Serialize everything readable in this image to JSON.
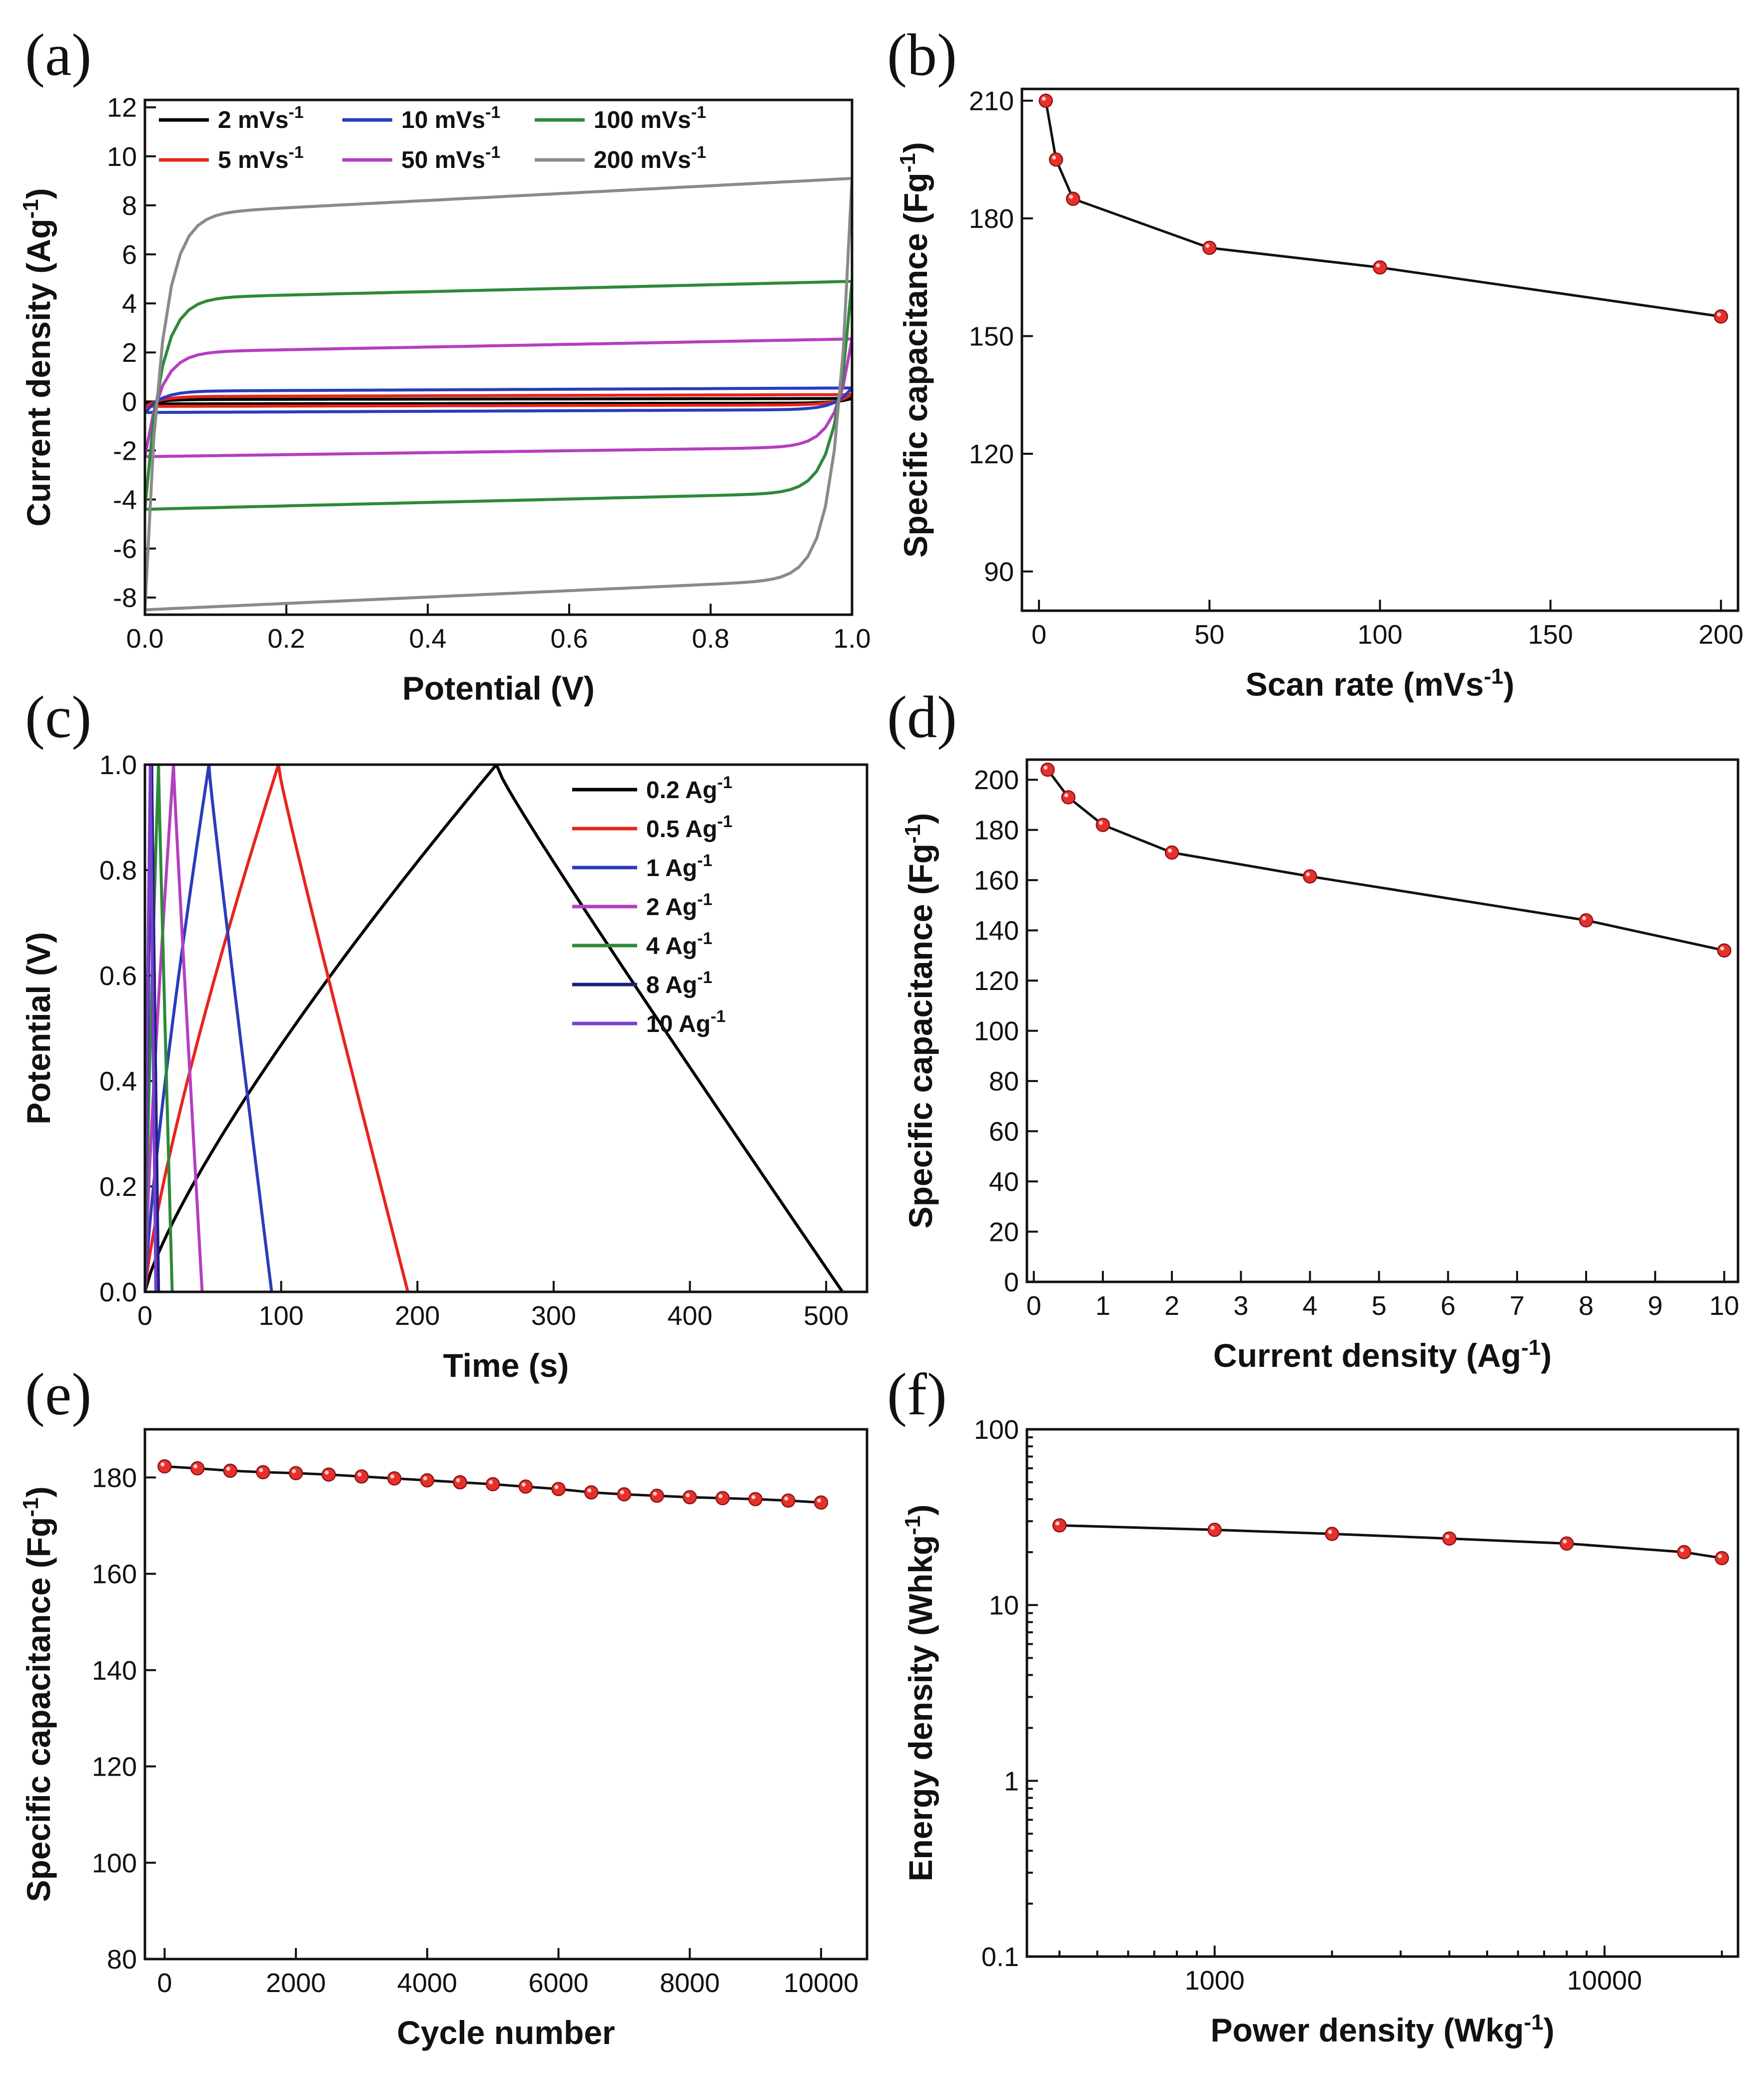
{
  "chart_data": [
    {
      "id": "a",
      "panel_label": "(a)",
      "type": "line",
      "title": "",
      "xlabel": "Potential (V)",
      "ylabel_main": "Current density (Ag",
      "ylabel_sup": "-1",
      "ylabel_end": ")",
      "xlim": [
        0,
        1
      ],
      "ylim": [
        -8.7,
        12.3
      ],
      "xticks": [
        0.0,
        0.2,
        0.4,
        0.6,
        0.8,
        1.0
      ],
      "xtick_labels": [
        "0.0",
        "0.2",
        "0.4",
        "0.6",
        "0.8",
        "1.0"
      ],
      "yticks": [
        -8,
        -6,
        -4,
        -2,
        0,
        2,
        4,
        6,
        8,
        10,
        12
      ],
      "ytick_labels": [
        "-8",
        "-6",
        "-4",
        "-2",
        "0",
        "2",
        "4",
        "6",
        "8",
        "10",
        "12"
      ],
      "legend_position": "top-left",
      "series": [
        {
          "name": "2 mVs",
          "sup": "-1",
          "color": "#000000",
          "upper_start": 0.08,
          "upper_end": 0.12,
          "lower_start": -0.1,
          "lower_end": -0.07
        },
        {
          "name": "5 mVs",
          "sup": "-1",
          "color": "#e8241c",
          "upper_start": 0.2,
          "upper_end": 0.28,
          "lower_start": -0.2,
          "lower_end": -0.14
        },
        {
          "name": "10 mVs",
          "sup": "-1",
          "color": "#2b3bbd",
          "upper_start": 0.42,
          "upper_end": 0.55,
          "lower_start": -0.45,
          "lower_end": -0.33
        },
        {
          "name": "50 mVs",
          "sup": "-1",
          "color": "#b43fc0",
          "upper_start": 2.0,
          "upper_end": 2.55,
          "lower_start": -2.25,
          "lower_end": -1.85
        },
        {
          "name": "100 mVs",
          "sup": "-1",
          "color": "#2d8a38",
          "upper_start": 4.2,
          "upper_end": 4.9,
          "lower_start": -4.4,
          "lower_end": -3.7
        },
        {
          "name": "200 mVs",
          "sup": "-1",
          "color": "#8a8a8a",
          "upper_start": 7.6,
          "upper_end": 9.1,
          "lower_start": -8.5,
          "lower_end": -7.2
        }
      ]
    },
    {
      "id": "b",
      "panel_label": "(b)",
      "type": "scatter",
      "title": "",
      "xlabel_main": "Scan rate (mVs",
      "xlabel_sup": "-1",
      "xlabel_end": ")",
      "ylabel_main": "Specific capacitance (Fg",
      "ylabel_sup": "-1",
      "ylabel_end": ")",
      "xlim": [
        -5,
        205
      ],
      "ylim": [
        80,
        213
      ],
      "xticks": [
        0,
        50,
        100,
        150,
        200
      ],
      "xtick_labels": [
        "0",
        "50",
        "100",
        "150",
        "200"
      ],
      "yticks": [
        90,
        120,
        150,
        180,
        210
      ],
      "ytick_labels": [
        "90",
        "120",
        "150",
        "180",
        "210"
      ],
      "x": [
        2,
        5,
        10,
        50,
        100,
        200
      ],
      "y": [
        210,
        195,
        185,
        172.5,
        167.5,
        155
      ]
    },
    {
      "id": "c",
      "panel_label": "(c)",
      "type": "line",
      "title": "",
      "xlabel": "Time (s)",
      "ylabel": "Potential (V)",
      "xlim": [
        0,
        530
      ],
      "ylim": [
        0,
        1.0
      ],
      "xticks": [
        0,
        100,
        200,
        300,
        400,
        500
      ],
      "xtick_labels": [
        "0",
        "100",
        "200",
        "300",
        "400",
        "500"
      ],
      "yticks": [
        0.0,
        0.2,
        0.4,
        0.6,
        0.8,
        1.0
      ],
      "ytick_labels": [
        "0.0",
        "0.2",
        "0.4",
        "0.6",
        "0.8",
        "1.0"
      ],
      "legend_position": "top-right",
      "series": [
        {
          "name": "0.2 Ag",
          "sup": "-1",
          "color": "#000000",
          "t_peak": 258,
          "t_end": 512
        },
        {
          "name": "0.5 Ag",
          "sup": "-1",
          "color": "#e8241c",
          "t_peak": 98,
          "t_end": 193
        },
        {
          "name": "1 Ag",
          "sup": "-1",
          "color": "#2b3bbd",
          "t_peak": 47,
          "t_end": 93
        },
        {
          "name": "2 Ag",
          "sup": "-1",
          "color": "#b43fc0",
          "t_peak": 21,
          "t_end": 42
        },
        {
          "name": "4 Ag",
          "sup": "-1",
          "color": "#2d8a38",
          "t_peak": 10,
          "t_end": 20
        },
        {
          "name": "8 Ag",
          "sup": "-1",
          "color": "#1f1f7a",
          "t_peak": 5,
          "t_end": 10
        },
        {
          "name": "10 Ag",
          "sup": "-1",
          "color": "#7a3fd0",
          "t_peak": 4,
          "t_end": 8
        }
      ]
    },
    {
      "id": "d",
      "panel_label": "(d)",
      "type": "scatter",
      "title": "",
      "xlabel_main": "Current density (Ag",
      "xlabel_sup": "-1",
      "xlabel_end": ")",
      "ylabel_main": "Specific capacitance (Fg",
      "ylabel_sup": "-1",
      "ylabel_end": ")",
      "xlim": [
        -0.1,
        10.2
      ],
      "ylim": [
        0,
        208
      ],
      "xticks": [
        0,
        1,
        2,
        3,
        4,
        5,
        6,
        7,
        8,
        9,
        10
      ],
      "xtick_labels": [
        "0",
        "1",
        "2",
        "3",
        "4",
        "5",
        "6",
        "7",
        "8",
        "9",
        "10"
      ],
      "yticks": [
        0,
        20,
        40,
        60,
        80,
        100,
        120,
        140,
        160,
        180,
        200
      ],
      "ytick_labels": [
        "0",
        "20",
        "40",
        "60",
        "80",
        "100",
        "120",
        "140",
        "160",
        "180",
        "200"
      ],
      "x": [
        0.2,
        0.5,
        1,
        2,
        4,
        8,
        10
      ],
      "y": [
        204,
        193,
        182,
        171,
        161.5,
        144,
        132
      ]
    },
    {
      "id": "e",
      "panel_label": "(e)",
      "type": "scatter",
      "title": "",
      "xlabel": "Cycle number",
      "ylabel_main": "Specific capacitance (Fg",
      "ylabel_sup": "-1",
      "ylabel_end": ")",
      "xlim": [
        -300,
        10700
      ],
      "ylim": [
        80,
        190
      ],
      "xticks": [
        0,
        2000,
        4000,
        6000,
        8000,
        10000
      ],
      "xtick_labels": [
        "0",
        "2000",
        "4000",
        "6000",
        "8000",
        "10000"
      ],
      "yticks": [
        80,
        100,
        120,
        140,
        160,
        180
      ],
      "ytick_labels": [
        "80",
        "100",
        "120",
        "140",
        "160",
        "180"
      ],
      "x": [
        0,
        500,
        1000,
        1500,
        2000,
        2500,
        3000,
        3500,
        4000,
        4500,
        5000,
        5500,
        6000,
        6500,
        7000,
        7500,
        8000,
        8500,
        9000,
        9500,
        10000
      ],
      "y": [
        182.3,
        181.9,
        181.4,
        181.1,
        180.9,
        180.6,
        180.2,
        179.8,
        179.4,
        179.0,
        178.6,
        178.1,
        177.6,
        176.9,
        176.5,
        176.2,
        175.9,
        175.7,
        175.5,
        175.2,
        174.8
      ]
    },
    {
      "id": "f",
      "panel_label": "(f)",
      "type": "scatter",
      "title": "",
      "xlabel_main": "Power density (Wkg",
      "xlabel_sup": "-1",
      "xlabel_end": ")",
      "ylabel_main": "Energy density (Whkg",
      "ylabel_sup": "-1",
      "ylabel_end": ")",
      "xscale": "log",
      "yscale": "log",
      "xlim": [
        330,
        22000
      ],
      "ylim": [
        0.1,
        100
      ],
      "xticks": [
        1000,
        10000
      ],
      "xtick_labels": [
        "1000",
        "10000"
      ],
      "yticks": [
        0.1,
        1,
        10,
        100
      ],
      "ytick_labels": [
        "0.1",
        "1",
        "10",
        "100"
      ],
      "x": [
        400,
        1000,
        2000,
        4000,
        8000,
        16000,
        20000
      ],
      "y": [
        28.4,
        26.8,
        25.4,
        23.9,
        22.4,
        20.0,
        18.5
      ]
    }
  ]
}
